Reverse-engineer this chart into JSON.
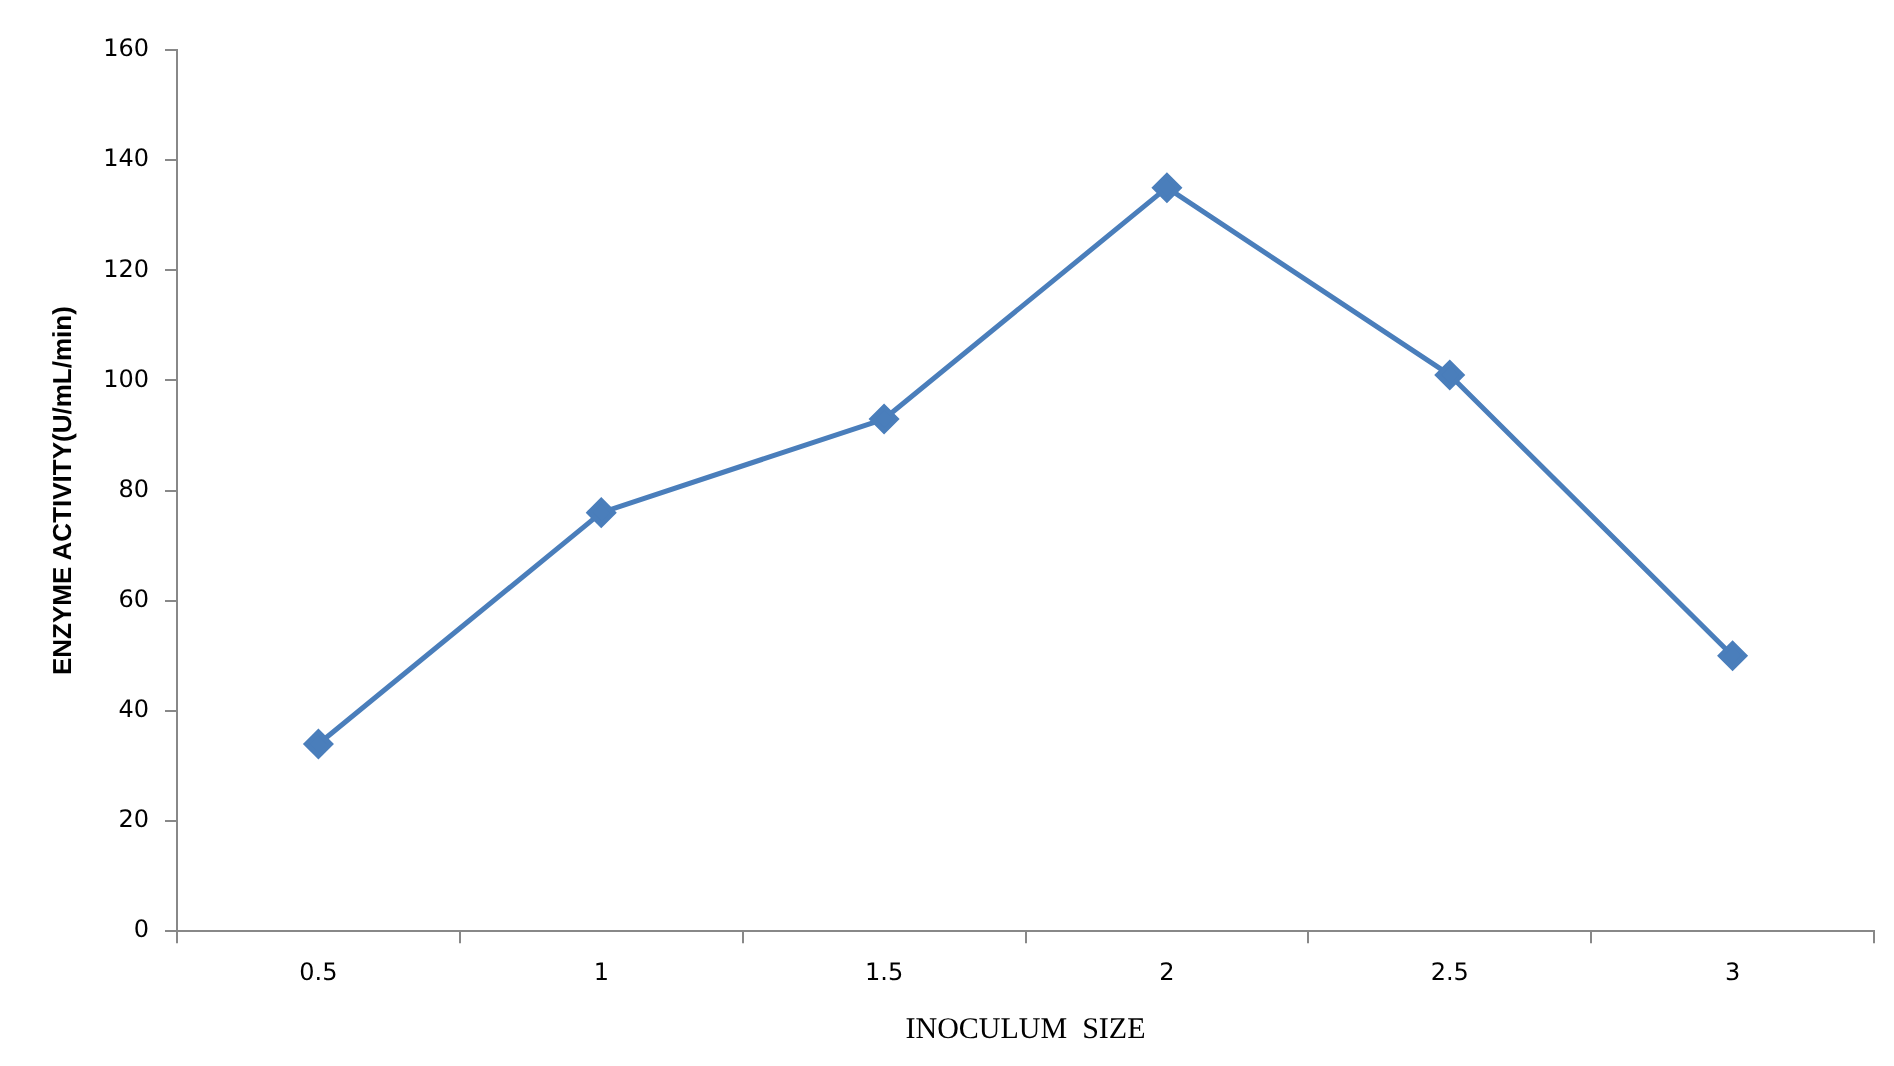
{
  "chart_data": {
    "type": "line",
    "xlabel": "INOCULUM  SIZE",
    "ylabel": "ENZYME ACTIVITY(U/mL/min)",
    "categories": [
      "0.5",
      "1",
      "1.5",
      "2",
      "2.5",
      "3"
    ],
    "series": [
      {
        "color": "#4a7ebb",
        "values": [
          34,
          76,
          93,
          135,
          101,
          50
        ]
      }
    ],
    "ylim": [
      0,
      160
    ],
    "yticks": [
      0,
      20,
      40,
      60,
      80,
      100,
      120,
      140,
      160
    ],
    "grid": false,
    "legend": false,
    "marker": "diamond",
    "line_style": "solid"
  }
}
